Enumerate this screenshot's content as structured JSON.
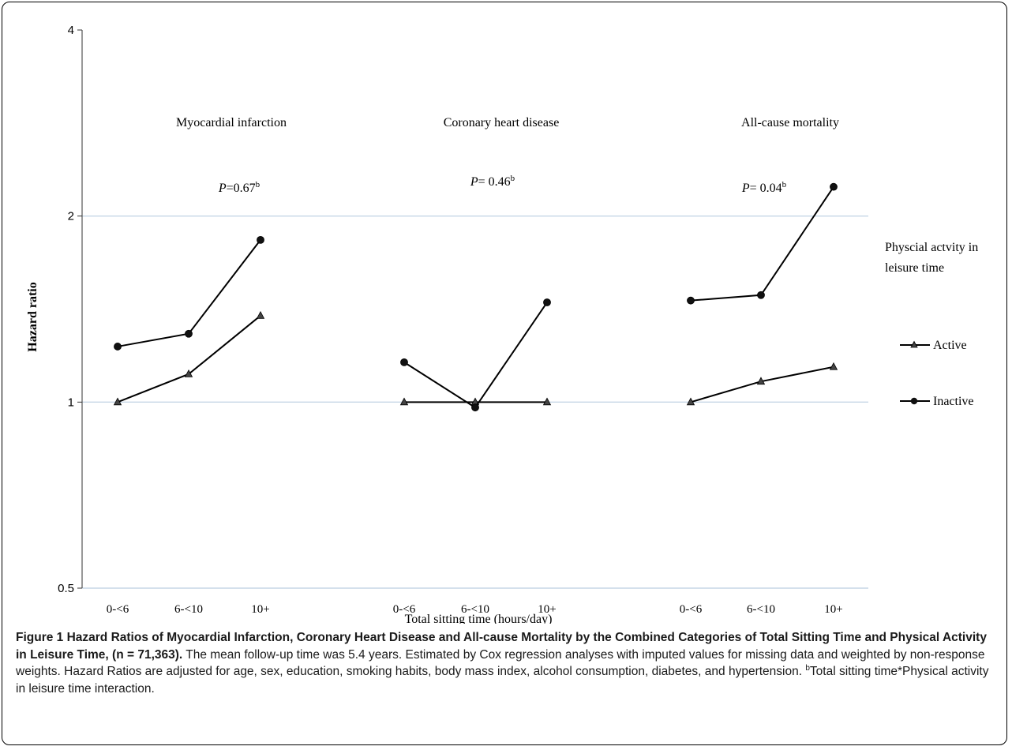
{
  "chart_data": {
    "type": "line",
    "ylabel": "Hazard ratio",
    "xlabel": "Total sitting time (hours/day)",
    "y_scale": "log2",
    "ylim": [
      0.5,
      4
    ],
    "yticks": [
      {
        "value": 0.5,
        "label": "0.5"
      },
      {
        "value": 1,
        "label": "1"
      },
      {
        "value": 2,
        "label": "2"
      },
      {
        "value": 4,
        "label": "4"
      }
    ],
    "grid": "horizontal",
    "legend": {
      "title": "Physcial actvity in leisure time",
      "placement": "right",
      "entries": [
        {
          "label": "Active",
          "marker": "triangle"
        },
        {
          "label": "Inactive",
          "marker": "circle"
        }
      ]
    },
    "groups": [
      {
        "label": "Myocardial infarction",
        "p_text": "=0.67",
        "categories": [
          "0-<6",
          "6-<10",
          "10+"
        ],
        "series": [
          {
            "name": "Active",
            "values": [
              1.0,
              1.11,
              1.38
            ]
          },
          {
            "name": "Inactive",
            "values": [
              1.23,
              1.29,
              1.83
            ]
          }
        ]
      },
      {
        "label": "Coronary heart disease",
        "p_text": "= 0.46",
        "categories": [
          "0-<6",
          "6-<10",
          "10+"
        ],
        "series": [
          {
            "name": "Active",
            "values": [
              1.0,
              1.0,
              1.0
            ]
          },
          {
            "name": "Inactive",
            "values": [
              1.16,
              0.98,
              1.45
            ]
          }
        ]
      },
      {
        "label": "All-cause mortality",
        "p_text": "= 0.04",
        "categories": [
          "0-<6",
          "6-<10",
          "10+"
        ],
        "series": [
          {
            "name": "Active",
            "values": [
              1.0,
              1.08,
              1.14
            ]
          },
          {
            "name": "Inactive",
            "values": [
              1.46,
              1.49,
              2.23
            ]
          }
        ]
      }
    ]
  },
  "caption": {
    "title": "Figure 1 Hazard Ratios of Myocardial Infarction, Coronary Heart Disease and All-cause Mortality by the Combined Categories of Total Sitting Time and Physical Activity in Leisure Time, (n = 71,363).",
    "text": " The mean follow-up time was 5.4 years. Estimated by Cox regression analyses with imputed values for missing data and weighted by non-response weights. Hazard Ratios are adjusted for age, sex, education, smoking habits, body mass index, alcohol consumption, diabetes, and hypertension. ",
    "footnote_mark": "b",
    "footnote": "Total sitting time*Physical activity in leisure time interaction."
  }
}
